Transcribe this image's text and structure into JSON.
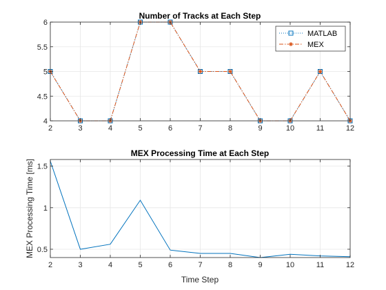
{
  "chart_data": [
    {
      "type": "line",
      "title": "Number of Tracks at Each Step",
      "xlabel": "",
      "ylabel": "",
      "xlim": [
        2,
        12
      ],
      "ylim": [
        4,
        6
      ],
      "xticks": [
        "2",
        "3",
        "4",
        "5",
        "6",
        "7",
        "8",
        "9",
        "10",
        "11",
        "12"
      ],
      "yticks": [
        "4",
        "4.5",
        "5",
        "5.5",
        "6"
      ],
      "grid": true,
      "legend_position": "top-right",
      "x": [
        2,
        3,
        4,
        5,
        6,
        7,
        8,
        9,
        10,
        11,
        12
      ],
      "series": [
        {
          "name": "MATLAB",
          "values": [
            5,
            4,
            4,
            6,
            6,
            5,
            5,
            4,
            4,
            5,
            4
          ],
          "color": "#0072BD",
          "marker": "square",
          "line": "dotted"
        },
        {
          "name": "MEX",
          "values": [
            5,
            4,
            4,
            6,
            6,
            5,
            5,
            4,
            4,
            5,
            4
          ],
          "color": "#D95319",
          "marker": "asterisk",
          "line": "dash-dot"
        }
      ]
    },
    {
      "type": "line",
      "title": "MEX Processing Time at Each Step",
      "xlabel": "Time Step",
      "ylabel": "MEX Processing Time [ms]",
      "xlim": [
        2,
        12
      ],
      "ylim": [
        0.4,
        1.58
      ],
      "xticks": [
        "2",
        "3",
        "4",
        "5",
        "6",
        "7",
        "8",
        "9",
        "10",
        "11",
        "12"
      ],
      "yticks": [
        "0.5",
        "1",
        "1.5"
      ],
      "grid": true,
      "x": [
        2,
        3,
        4,
        5,
        6,
        7,
        8,
        9,
        10,
        11,
        12
      ],
      "series": [
        {
          "values": [
            1.56,
            0.5,
            0.56,
            1.09,
            0.49,
            0.45,
            0.45,
            0.4,
            0.44,
            0.42,
            0.41
          ],
          "color": "#0072BD"
        }
      ]
    }
  ]
}
